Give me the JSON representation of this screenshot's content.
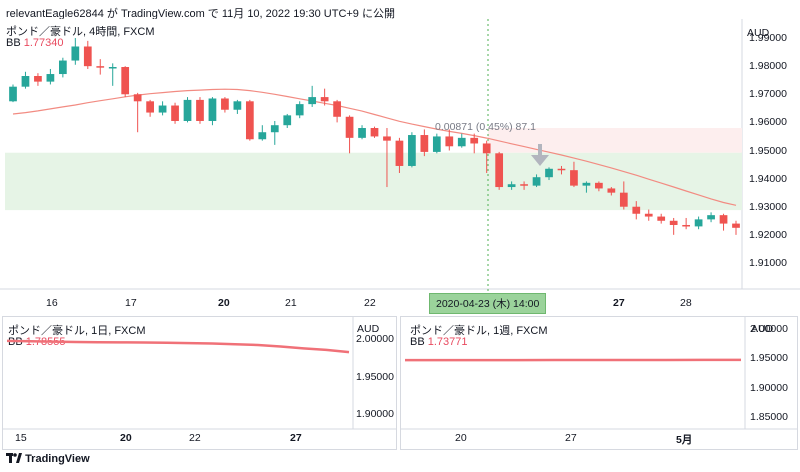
{
  "header": {
    "snapshot_line": "relevantEagle62844 が TradingView.com で 11月 10, 2022 19:30 UTC+9 に公開"
  },
  "main_chart": {
    "title": "ポンド／豪ドル, 4時間, FXCM",
    "indicator": {
      "name": "BB",
      "value": "1.77340"
    },
    "currency": "AUD",
    "y_ticks": [
      "1.99000",
      "1.98000",
      "1.97000",
      "1.96000",
      "1.95000",
      "1.94000",
      "1.93000",
      "1.92000",
      "1.91000"
    ],
    "x_ticks": [
      {
        "label": "16",
        "bold": false
      },
      {
        "label": "17",
        "bold": false
      },
      {
        "label": "20",
        "bold": true
      },
      {
        "label": "21",
        "bold": false
      },
      {
        "label": "22",
        "bold": false
      },
      {
        "label": "27",
        "bold": true
      },
      {
        "label": "28",
        "bold": false
      }
    ],
    "crosshair_time": "2020-04-23 (木)  14:00",
    "measure_label": "0.00871 (0.45%) 87.1",
    "colors": {
      "up": "#26a69a",
      "down": "#ef5350",
      "bb": "#f28b82",
      "green_zone": "#e6f4e6",
      "red_zone": "#fdeeee"
    },
    "chart_data": {
      "type": "candlestick",
      "unit": "AUD",
      "ylim": [
        1.905,
        1.995
      ],
      "candles": [
        [
          1.9675,
          1.9735,
          1.9672,
          1.9727
        ],
        [
          1.9727,
          1.978,
          1.972,
          1.9765
        ],
        [
          1.9765,
          1.9775,
          1.973,
          1.9745
        ],
        [
          1.9745,
          1.979,
          1.9735,
          1.9772
        ],
        [
          1.9772,
          1.983,
          1.976,
          1.982
        ],
        [
          1.982,
          1.99,
          1.9805,
          1.987
        ],
        [
          1.987,
          1.989,
          1.979,
          1.98
        ],
        [
          1.98,
          1.9825,
          1.977,
          1.9795
        ],
        [
          1.9792,
          1.981,
          1.973,
          1.9797
        ],
        [
          1.9797,
          1.98,
          1.969,
          1.97
        ],
        [
          1.97,
          1.9705,
          1.9565,
          1.9675
        ],
        [
          1.9675,
          1.968,
          1.962,
          1.9635
        ],
        [
          1.9635,
          1.9675,
          1.9625,
          1.966
        ],
        [
          1.966,
          1.967,
          1.9595,
          1.9605
        ],
        [
          1.9605,
          1.969,
          1.96,
          1.968
        ],
        [
          1.968,
          1.969,
          1.9595,
          1.9605
        ],
        [
          1.9605,
          1.969,
          1.959,
          1.9685
        ],
        [
          1.9685,
          1.969,
          1.9635,
          1.9645
        ],
        [
          1.9645,
          1.968,
          1.963,
          1.9675
        ],
        [
          1.9675,
          1.968,
          1.9535,
          1.954
        ],
        [
          1.954,
          1.959,
          1.9535,
          1.9565
        ],
        [
          1.9565,
          1.9605,
          1.952,
          1.959
        ],
        [
          1.959,
          1.963,
          1.958,
          1.9625
        ],
        [
          1.9625,
          1.9675,
          1.9615,
          1.9665
        ],
        [
          1.9665,
          1.973,
          1.9655,
          1.969
        ],
        [
          1.969,
          1.972,
          1.966,
          1.9675
        ],
        [
          1.9675,
          1.968,
          1.96,
          1.962
        ],
        [
          1.962,
          1.9625,
          1.949,
          1.9545
        ],
        [
          1.9545,
          1.959,
          1.954,
          1.958
        ],
        [
          1.958,
          1.9585,
          1.9545,
          1.955
        ],
        [
          1.955,
          1.958,
          1.937,
          1.9535
        ],
        [
          1.9535,
          1.9545,
          1.942,
          1.9445
        ],
        [
          1.9445,
          1.9565,
          1.944,
          1.9555
        ],
        [
          1.9555,
          1.9575,
          1.948,
          1.9495
        ],
        [
          1.9495,
          1.956,
          1.949,
          1.955
        ],
        [
          1.955,
          1.9575,
          1.95,
          1.9515
        ],
        [
          1.9515,
          1.956,
          1.951,
          1.9545
        ],
        [
          1.9545,
          1.956,
          1.949,
          1.9525
        ],
        [
          1.9525,
          1.9535,
          1.942,
          1.949
        ],
        [
          1.949,
          1.9495,
          1.936,
          1.937
        ],
        [
          1.937,
          1.939,
          1.936,
          1.938
        ],
        [
          1.938,
          1.939,
          1.936,
          1.9375
        ],
        [
          1.9375,
          1.9415,
          1.937,
          1.9405
        ],
        [
          1.9405,
          1.944,
          1.9395,
          1.9435
        ],
        [
          1.9435,
          1.9445,
          1.9415,
          1.943
        ],
        [
          1.943,
          1.946,
          1.937,
          1.9375
        ],
        [
          1.9375,
          1.939,
          1.935,
          1.9385
        ],
        [
          1.9385,
          1.939,
          1.9355,
          1.9365
        ],
        [
          1.9365,
          1.937,
          1.934,
          1.935
        ],
        [
          1.935,
          1.939,
          1.929,
          1.93
        ],
        [
          1.93,
          1.932,
          1.9255,
          1.9275
        ],
        [
          1.9275,
          1.929,
          1.925,
          1.9265
        ],
        [
          1.9265,
          1.9275,
          1.924,
          1.925
        ],
        [
          1.925,
          1.926,
          1.92,
          1.9235
        ],
        [
          1.9235,
          1.926,
          1.922,
          1.923
        ],
        [
          1.923,
          1.9265,
          1.922,
          1.9255
        ],
        [
          1.9255,
          1.928,
          1.9245,
          1.927
        ],
        [
          1.927,
          1.9275,
          1.9215,
          1.924
        ],
        [
          1.924,
          1.925,
          1.92,
          1.9225
        ]
      ],
      "bb_basis": [
        1.963,
        1.9635,
        1.9641,
        1.9648,
        1.9655,
        1.9662,
        1.967,
        1.9677,
        1.9684,
        1.9691,
        1.9697,
        1.9702,
        1.9706,
        1.971,
        1.9713,
        1.9715,
        1.9717,
        1.9718,
        1.9717,
        1.9713,
        1.9707,
        1.97,
        1.9692,
        1.9684,
        1.9676,
        1.9668,
        1.966,
        1.965,
        1.964,
        1.9628,
        1.9616,
        1.9604,
        1.9594,
        1.9585,
        1.9576,
        1.9568,
        1.9561,
        1.9553,
        1.9544,
        1.9534,
        1.9524,
        1.9514,
        1.9504,
        1.9494,
        1.9484,
        1.9473,
        1.9462,
        1.945,
        1.9438,
        1.9425,
        1.9412,
        1.9398,
        1.9384,
        1.937,
        1.9356,
        1.9342,
        1.9328,
        1.9315,
        1.9305
      ],
      "red_zone": [
        1.9492,
        1.958
      ],
      "green_zone": [
        1.9288,
        1.9492
      ]
    }
  },
  "daily_chart": {
    "title": "ポンド／豪ドル, 1日, FXCM",
    "indicator": {
      "name": "BB",
      "value": "1.78555"
    },
    "currency": "AUD",
    "y_ticks": [
      "2.00000",
      "1.95000",
      "1.90000"
    ],
    "x_ticks": [
      {
        "label": "15",
        "bold": false
      },
      {
        "label": "20",
        "bold": true
      },
      {
        "label": "22",
        "bold": false
      },
      {
        "label": "27",
        "bold": true
      }
    ],
    "chart_data": {
      "type": "line",
      "ylim": [
        1.88,
        2.03
      ],
      "values": [
        1.998,
        1.9975,
        1.997,
        1.9965,
        1.9962,
        1.996,
        1.9958,
        1.9955,
        1.995,
        1.9945,
        1.9935,
        1.9925,
        1.9905,
        1.988,
        1.986,
        1.983
      ]
    }
  },
  "weekly_chart": {
    "title": "ポンド／豪ドル, 1週, FXCM",
    "indicator": {
      "name": "BB",
      "value": "1.73771"
    },
    "currency": "AUD",
    "y_ticks": [
      "2.00000",
      "1.95000",
      "1.90000",
      "1.85000"
    ],
    "x_ticks": [
      {
        "label": "20",
        "bold": false
      },
      {
        "label": "27",
        "bold": false
      },
      {
        "label": "5月",
        "bold": true
      }
    ],
    "chart_data": {
      "type": "line",
      "ylim": [
        1.83,
        2.02
      ],
      "values": [
        1.9468,
        1.9468,
        1.9469,
        1.9469,
        1.947,
        1.947,
        1.9471,
        1.9471,
        1.9472,
        1.9472
      ]
    }
  },
  "footer": {
    "brand": "TradingView"
  }
}
